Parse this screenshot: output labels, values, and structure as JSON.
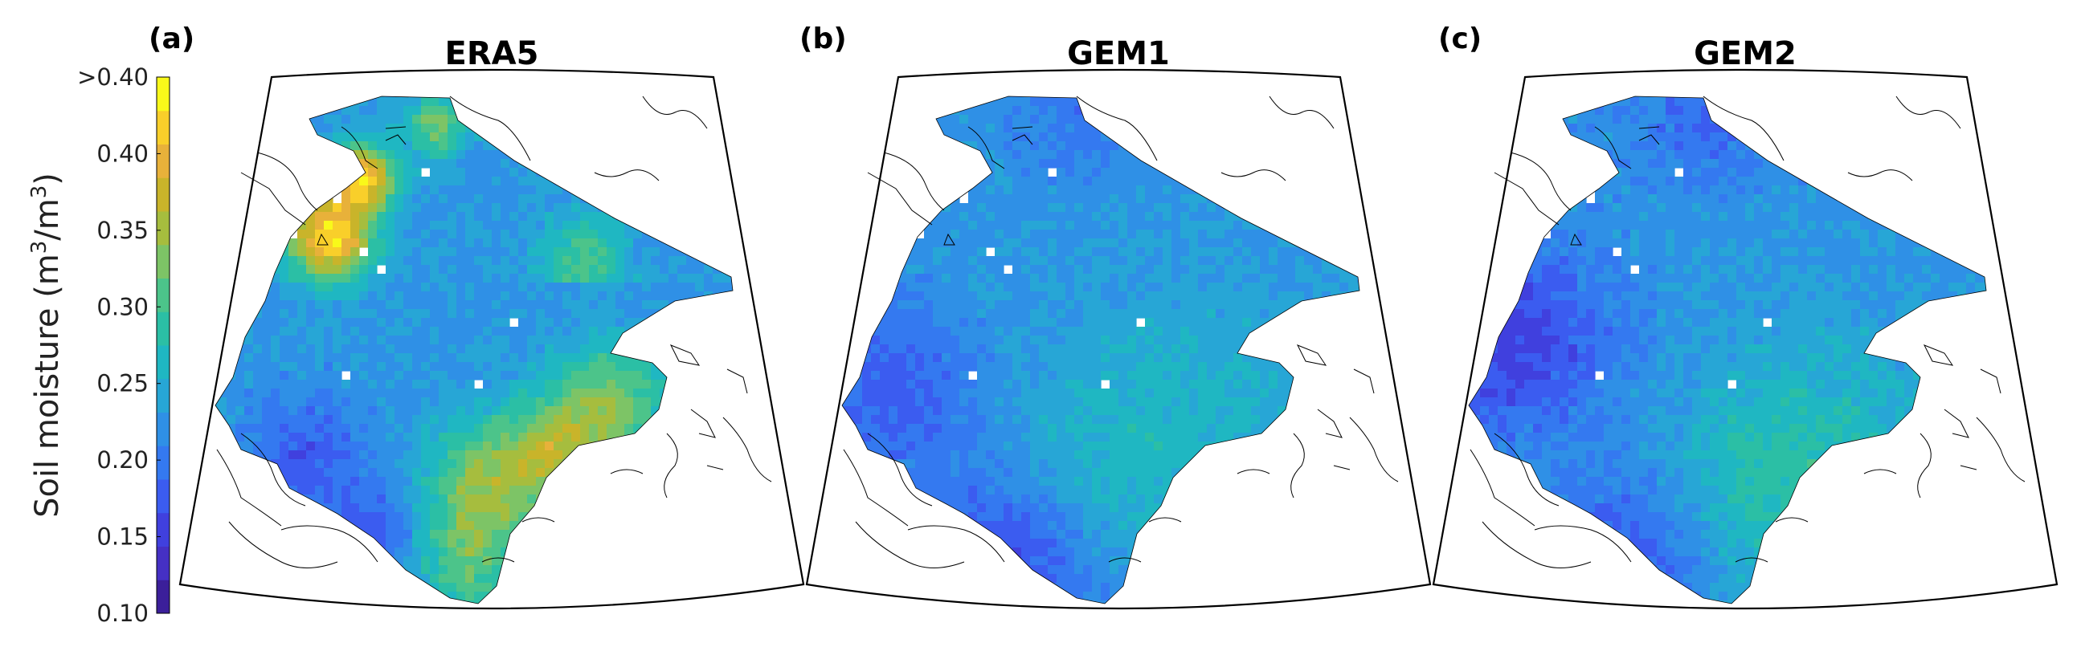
{
  "colorbar": {
    "label_prefix": "Soil moisture (m",
    "label_exp1": "3",
    "label_mid": "/m",
    "label_exp2": "3",
    "label_suffix": ")",
    "ticks": [
      "0.10",
      "0.15",
      "0.20",
      "0.25",
      "0.30",
      "0.35",
      "0.40",
      ">0.40"
    ],
    "range": [
      0.1,
      0.45
    ],
    "colors": [
      "#3b1f9a",
      "#4530c4",
      "#4040de",
      "#3b5cf0",
      "#3479f0",
      "#2f90e6",
      "#27a6d6",
      "#1fb7c2",
      "#2bbfa5",
      "#4cc48a",
      "#7dc466",
      "#a6bd3e",
      "#c9b42a",
      "#e8b13a",
      "#f9cf2a",
      "#f9f91a"
    ]
  },
  "panels": [
    {
      "letter": "(a)",
      "title": "ERA5",
      "pattern": "era5"
    },
    {
      "letter": "(b)",
      "title": "GEM1",
      "pattern": "gem1"
    },
    {
      "letter": "(c)",
      "title": "GEM2",
      "pattern": "gem2"
    }
  ]
}
